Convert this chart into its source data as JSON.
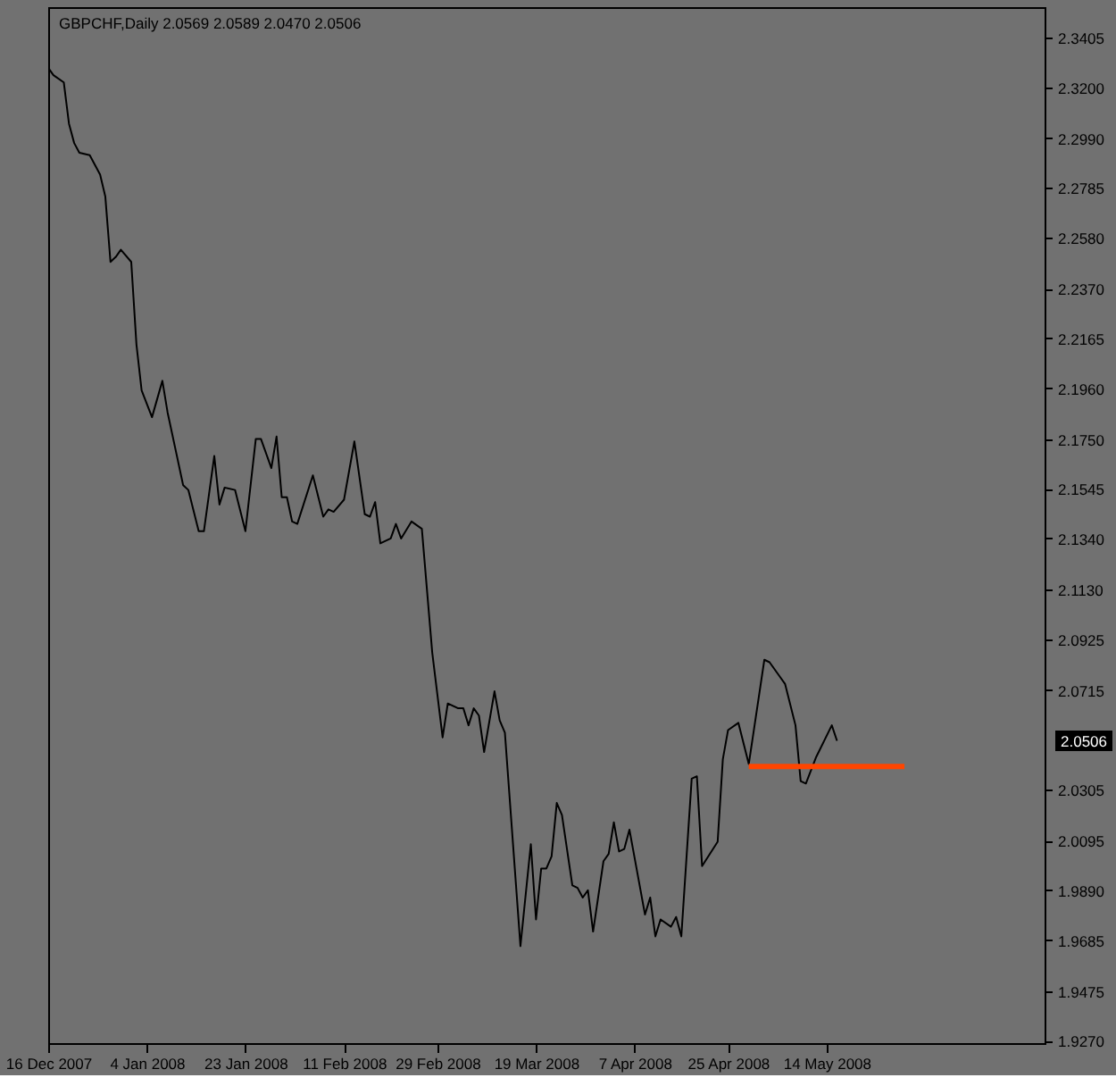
{
  "chart_data": {
    "type": "line",
    "title": "GBPCHF,Daily 2.0569 2.0589 2.0470 2.0506",
    "x": [
      "2007-12-16",
      "2007-12-17",
      "2007-12-19",
      "2007-12-20",
      "2007-12-21",
      "2007-12-22",
      "2007-12-24",
      "2007-12-26",
      "2007-12-27",
      "2007-12-28",
      "2007-12-29",
      "2007-12-30",
      "2008-01-01",
      "2008-01-02",
      "2008-01-03",
      "2008-01-05",
      "2008-01-07",
      "2008-01-08",
      "2008-01-11",
      "2008-01-12",
      "2008-01-14",
      "2008-01-15",
      "2008-01-17",
      "2008-01-18",
      "2008-01-19",
      "2008-01-21",
      "2008-01-23",
      "2008-01-25",
      "2008-01-26",
      "2008-01-28",
      "2008-01-29",
      "2008-01-30",
      "2008-01-31",
      "2008-02-01",
      "2008-02-02",
      "2008-02-05",
      "2008-02-07",
      "2008-02-08",
      "2008-02-09",
      "2008-02-11",
      "2008-02-13",
      "2008-02-15",
      "2008-02-16",
      "2008-02-17",
      "2008-02-18",
      "2008-02-20",
      "2008-02-21",
      "2008-02-22",
      "2008-02-24",
      "2008-02-26",
      "2008-02-28",
      "2008-03-01",
      "2008-03-02",
      "2008-03-04",
      "2008-03-05",
      "2008-03-06",
      "2008-03-07",
      "2008-03-08",
      "2008-03-09",
      "2008-03-11",
      "2008-03-12",
      "2008-03-13",
      "2008-03-16",
      "2008-03-18",
      "2008-03-19",
      "2008-03-20",
      "2008-03-21",
      "2008-03-22",
      "2008-03-23",
      "2008-03-24",
      "2008-03-26",
      "2008-03-27",
      "2008-03-28",
      "2008-03-29",
      "2008-03-30",
      "2008-04-01",
      "2008-04-02",
      "2008-04-03",
      "2008-04-04",
      "2008-04-05",
      "2008-04-06",
      "2008-04-09",
      "2008-04-10",
      "2008-04-11",
      "2008-04-12",
      "2008-04-14",
      "2008-04-15",
      "2008-04-16",
      "2008-04-18",
      "2008-04-19",
      "2008-04-20",
      "2008-04-23",
      "2008-04-24",
      "2008-04-25",
      "2008-04-27",
      "2008-04-29",
      "2008-05-02",
      "2008-05-03",
      "2008-05-05",
      "2008-05-06",
      "2008-05-08",
      "2008-05-09",
      "2008-05-10",
      "2008-05-12",
      "2008-05-15",
      "2008-05-16"
    ],
    "series": [
      {
        "color": "#000000",
        "values": [
          2.328,
          2.325,
          2.322,
          2.305,
          2.297,
          2.293,
          2.292,
          2.284,
          2.275,
          2.248,
          2.25,
          2.253,
          2.248,
          2.214,
          2.195,
          2.184,
          2.199,
          2.186,
          2.156,
          2.154,
          2.137,
          2.137,
          2.168,
          2.148,
          2.155,
          2.154,
          2.137,
          2.175,
          2.175,
          2.163,
          2.176,
          2.151,
          2.151,
          2.141,
          2.14,
          2.16,
          2.143,
          2.146,
          2.145,
          2.15,
          2.174,
          2.144,
          2.143,
          2.149,
          2.132,
          2.134,
          2.14,
          2.134,
          2.141,
          2.138,
          2.087,
          2.052,
          2.066,
          2.064,
          2.064,
          2.057,
          2.064,
          2.061,
          2.046,
          2.071,
          2.059,
          2.054,
          1.966,
          2.008,
          1.977,
          1.998,
          1.998,
          2.003,
          2.025,
          2.02,
          1.991,
          1.99,
          1.986,
          1.989,
          1.972,
          2.001,
          2.004,
          2.017,
          2.005,
          2.006,
          2.014,
          1.979,
          1.986,
          1.97,
          1.977,
          1.974,
          1.978,
          1.97,
          2.035,
          2.036,
          1.999,
          2.009,
          2.043,
          2.055,
          2.058,
          2.041,
          2.084,
          2.083,
          2.077,
          2.074,
          2.057,
          2.034,
          2.033,
          2.044,
          2.057,
          2.0506
        ]
      },
      {
        "type": "line",
        "color": "#ff4500",
        "x": [
          "2008-04-29",
          "2008-05-29"
        ],
        "values": [
          2.04,
          2.04
        ]
      }
    ],
    "xlim": [
      "2007-12-16",
      "2008-06-25"
    ],
    "xticks": [
      {
        "value": "2007-12-16",
        "label": "16 Dec 2007"
      },
      {
        "value": "2008-01-04",
        "label": "4 Jan 2008"
      },
      {
        "value": "2008-01-23",
        "label": "23 Jan 2008"
      },
      {
        "value": "2008-02-11",
        "label": "11 Feb 2008"
      },
      {
        "value": "2008-02-29",
        "label": "29 Feb 2008"
      },
      {
        "value": "2008-03-19",
        "label": "19 Mar 2008"
      },
      {
        "value": "2008-04-07",
        "label": "7 Apr 2008"
      },
      {
        "value": "2008-04-25",
        "label": "25 Apr 2008"
      },
      {
        "value": "2008-05-14",
        "label": "14 May 2008"
      }
    ],
    "ylim": [
      1.926,
      2.353
    ],
    "yticks": [
      2.3405,
      {
        "value": 2.32,
        "label": "2.3200"
      },
      {
        "value": 2.299,
        "label": "2.2990"
      },
      2.2785,
      {
        "value": 2.258,
        "label": "2.2580"
      },
      {
        "value": 2.237,
        "label": "2.2370"
      },
      2.2165,
      {
        "value": 2.196,
        "label": "2.1960"
      },
      {
        "value": 2.175,
        "label": "2.1750"
      },
      2.1545,
      {
        "value": 2.134,
        "label": "2.1340"
      },
      {
        "value": 2.113,
        "label": "2.1130"
      },
      2.0925,
      2.0715,
      2.0305,
      2.0095,
      {
        "value": 1.989,
        "label": "1.9890"
      },
      1.9685,
      1.9475,
      {
        "value": 1.927,
        "label": "1.9270"
      }
    ],
    "annotations": [
      "2.0506"
    ],
    "grid": false,
    "marker": "none",
    "line_style": "solid"
  }
}
